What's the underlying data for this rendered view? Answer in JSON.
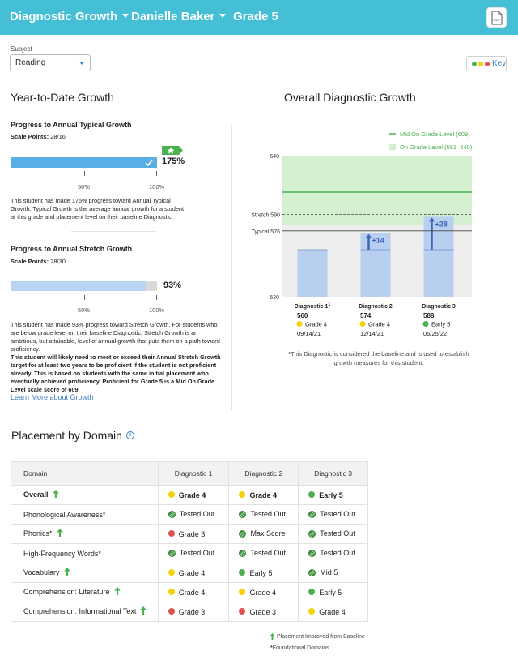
{
  "header": {
    "title": "Diagnostic Growth",
    "student": "Danielle Baker",
    "grade": "Grade 5",
    "pdf_label": "PDF"
  },
  "subject": {
    "label": "Subject",
    "value": "Reading"
  },
  "key_label": "Key",
  "colors": {
    "header_bg": "#45bfd6",
    "green": "#4caf50",
    "yellow": "#f5d10a",
    "red": "#e05252",
    "blue_bar": "#5aaee6",
    "light_blue_bar": "#b8d4f2",
    "link": "#3b7fc4"
  },
  "ytd": {
    "title": "Year-to-Date Growth",
    "typical": {
      "title": "Progress to Annual Typical Growth",
      "scale_label": "Scale Points:",
      "scale_value": "28/16",
      "percent_label": "175%",
      "progress_fraction": 1.0,
      "tick_50": "50%",
      "tick_100": "100%",
      "description": "This student has made 175% progress toward Annual Typical Growth. Typical Growth is the average annual growth for a student at this grade and placement level on their baseline Diagnostic."
    },
    "stretch": {
      "title": "Progress to Annual Stretch Growth",
      "scale_label": "Scale Points:",
      "scale_value": "28/30",
      "percent_label": "93%",
      "progress_fraction": 0.93,
      "tick_50": "50%",
      "tick_100": "100%",
      "description": "This student has made 93% progress toward Stretch Growth. For students who are below grade level on their baseline Diagnostic, Stretch Growth is an ambitious, but attainable, level of annual growth that puts them on a path toward proficiency.",
      "bold_note": "This student will likely need to meet or exceed their Annual Stretch Growth target for at least two years to be proficient if the student is not proficient already. This is based on students with the same initial placement who eventually achieved proficiency. Proficient for Grade 5 is a Mid On Grade Level scale score of 609."
    },
    "learn_more": "Learn More about Growth"
  },
  "chart_data": {
    "type": "bar",
    "title": "Overall Diagnostic Growth",
    "legend": [
      "Mid On Grade Level (609)",
      "On Grade Level (581–640)"
    ],
    "legend_placement": "top-right",
    "ylim": [
      520,
      640
    ],
    "y_tick_labels": [
      "640",
      "520"
    ],
    "reference_lines": [
      {
        "name": "Mid On Grade Level",
        "value": 609
      },
      {
        "label": "Stretch 590",
        "value": 590
      },
      {
        "label": "Typical 576",
        "value": 576
      }
    ],
    "on_grade_band": [
      581,
      640
    ],
    "categories": [
      "Diagnostic 1",
      "Diagnostic 2",
      "Diagnostic 3"
    ],
    "category_superscripts": [
      "1",
      "",
      ""
    ],
    "values": [
      560,
      574,
      588
    ],
    "value_labels": [
      "560",
      "574",
      "588"
    ],
    "growth_labels": [
      "",
      "+14",
      "+28"
    ],
    "placements": [
      {
        "label": "Grade 4",
        "color": "#f5d10a"
      },
      {
        "label": "Grade 4",
        "color": "#f5d10a"
      },
      {
        "label": "Early 5",
        "color": "#4caf50"
      }
    ],
    "dates": [
      "09/14/21",
      "12/14/21",
      "06/25/22"
    ],
    "footnote": "¹This Diagnostic is considered the baseline and is used to establish growth measures for this student."
  },
  "placement": {
    "title": "Placement by Domain",
    "columns": [
      "Domain",
      "Diagnostic 1",
      "Diagnostic 2",
      "Diagnostic 3"
    ],
    "rows": [
      {
        "domain": "Overall",
        "improved": true,
        "bold": true,
        "cells": [
          {
            "label": "Grade 4",
            "status": "yellow"
          },
          {
            "label": "Grade 4",
            "status": "yellow"
          },
          {
            "label": "Early 5",
            "status": "green"
          }
        ]
      },
      {
        "domain": "Phonological Awareness*",
        "improved": false,
        "bold": false,
        "cells": [
          {
            "label": "Tested Out",
            "status": "tested"
          },
          {
            "label": "Tested Out",
            "status": "tested"
          },
          {
            "label": "Tested Out",
            "status": "tested"
          }
        ]
      },
      {
        "domain": "Phonics*",
        "improved": true,
        "bold": false,
        "cells": [
          {
            "label": "Grade 3",
            "status": "red"
          },
          {
            "label": "Max Score",
            "status": "tested"
          },
          {
            "label": "Tested Out",
            "status": "tested"
          }
        ]
      },
      {
        "domain": "High-Frequency Words*",
        "improved": false,
        "bold": false,
        "cells": [
          {
            "label": "Tested Out",
            "status": "tested"
          },
          {
            "label": "Tested Out",
            "status": "tested"
          },
          {
            "label": "Tested Out",
            "status": "tested"
          }
        ]
      },
      {
        "domain": "Vocabulary",
        "improved": true,
        "bold": false,
        "cells": [
          {
            "label": "Grade 4",
            "status": "yellow"
          },
          {
            "label": "Early 5",
            "status": "green"
          },
          {
            "label": "Mid 5",
            "status": "tested"
          }
        ]
      },
      {
        "domain": "Comprehension: Literature",
        "improved": true,
        "bold": false,
        "cells": [
          {
            "label": "Grade 4",
            "status": "yellow"
          },
          {
            "label": "Grade 4",
            "status": "yellow"
          },
          {
            "label": "Early 5",
            "status": "green"
          }
        ]
      },
      {
        "domain": "Comprehension: Informational Text",
        "improved": true,
        "bold": false,
        "cells": [
          {
            "label": "Grade 3",
            "status": "red"
          },
          {
            "label": "Grade 3",
            "status": "red"
          },
          {
            "label": "Grade 4",
            "status": "yellow"
          }
        ]
      }
    ],
    "legend_improved": "Placement Improved from Baseline",
    "legend_foundational_mark": "*",
    "legend_foundational": "Foundational Domains"
  }
}
